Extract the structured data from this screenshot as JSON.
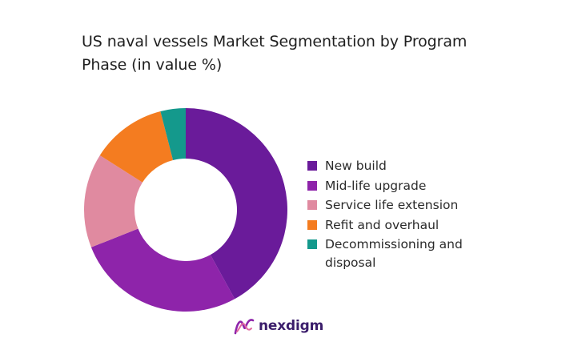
{
  "title": "US naval vessels Market Segmentation by Program Phase (in value %)",
  "logo": {
    "text": "nexdigm"
  },
  "chart_data": {
    "type": "pie",
    "subtype": "donut",
    "title": "US naval vessels Market Segmentation by Program Phase (in value %)",
    "categories": [
      "New build",
      "Mid-life upgrade",
      "Service life extension",
      "Refit and overhaul",
      "Decommissioning and disposal"
    ],
    "values": [
      42,
      27,
      15,
      12,
      4
    ],
    "colors": [
      "#6a1b9a",
      "#8e24aa",
      "#e08aa0",
      "#f47c20",
      "#14998c"
    ],
    "legend_position": "right"
  }
}
